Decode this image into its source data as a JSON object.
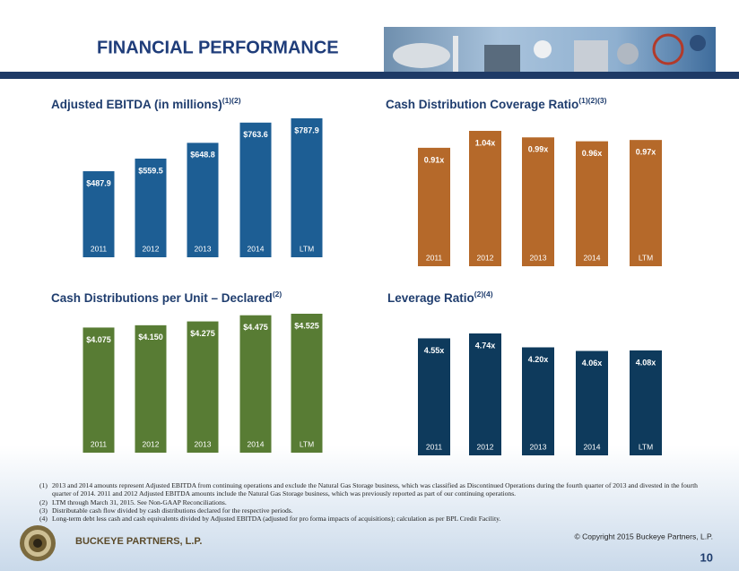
{
  "header": {
    "title": "FINANCIAL PERFORMANCE"
  },
  "chart_data": [
    {
      "type": "bar",
      "title": "Adjusted EBITDA (in millions)",
      "title_note": "(1)(2)",
      "categories": [
        "2011",
        "2012",
        "2013",
        "2014",
        "LTM"
      ],
      "values": [
        487.9,
        559.5,
        648.8,
        763.6,
        787.9
      ],
      "value_labels": [
        "$487.9",
        "$559.5",
        "$648.8",
        "$763.6",
        "$787.9"
      ],
      "color": "#1d5e94"
    },
    {
      "type": "bar",
      "title": "Cash Distribution Coverage Ratio",
      "title_note": "(1)(2)(3)",
      "categories": [
        "2011",
        "2012",
        "2013",
        "2014",
        "LTM"
      ],
      "values": [
        0.91,
        1.04,
        0.99,
        0.96,
        0.97
      ],
      "value_labels": [
        "0.91x",
        "1.04x",
        "0.99x",
        "0.96x",
        "0.97x"
      ],
      "color": "#b5692a"
    },
    {
      "type": "bar",
      "title": "Cash Distributions per Unit – Declared",
      "title_note": "(2)",
      "categories": [
        "2011",
        "2012",
        "2013",
        "2014",
        "LTM"
      ],
      "values": [
        4.075,
        4.15,
        4.275,
        4.475,
        4.525
      ],
      "value_labels": [
        "$4.075",
        "$4.150",
        "$4.275",
        "$4.475",
        "$4.525"
      ],
      "color": "#587c34"
    },
    {
      "type": "bar",
      "title": "Leverage Ratio",
      "title_note": "(2)(4)",
      "categories": [
        "2011",
        "2012",
        "2013",
        "2014",
        "LTM"
      ],
      "values": [
        4.55,
        4.74,
        4.2,
        4.06,
        4.08
      ],
      "value_labels": [
        "4.55x",
        "4.74x",
        "4.20x",
        "4.06x",
        "4.08x"
      ],
      "color": "#0e3a5c"
    }
  ],
  "footnotes": [
    {
      "marker": "(1)",
      "text": "2013 and 2014 amounts represent Adjusted EBITDA from continuing operations and exclude the Natural Gas Storage business, which was classified as Discontinued Operations during the fourth quarter of 2013 and divested in the fourth quarter of 2014.  2011 and 2012 Adjusted EBITDA amounts include the Natural Gas  Storage business, which was previously reported as part of our continuing operations."
    },
    {
      "marker": "(2)",
      "text": "LTM through March 31, 2015. See Non-GAAP Reconciliations."
    },
    {
      "marker": "(3)",
      "text": "Distributable cash flow divided by cash distributions declared for the respective periods."
    },
    {
      "marker": "(4)",
      "text": "Long-term debt less cash and cash equivalents divided by Adjusted EBITDA (adjusted for pro forma impacts of acquisitions); calculation as per BPL Credit Facility."
    }
  ],
  "footer": {
    "company": "BUCKEYE PARTNERS, L.P.",
    "copyright": "© Copyright 2015 Buckeye Partners, L.P.",
    "page": "10"
  }
}
